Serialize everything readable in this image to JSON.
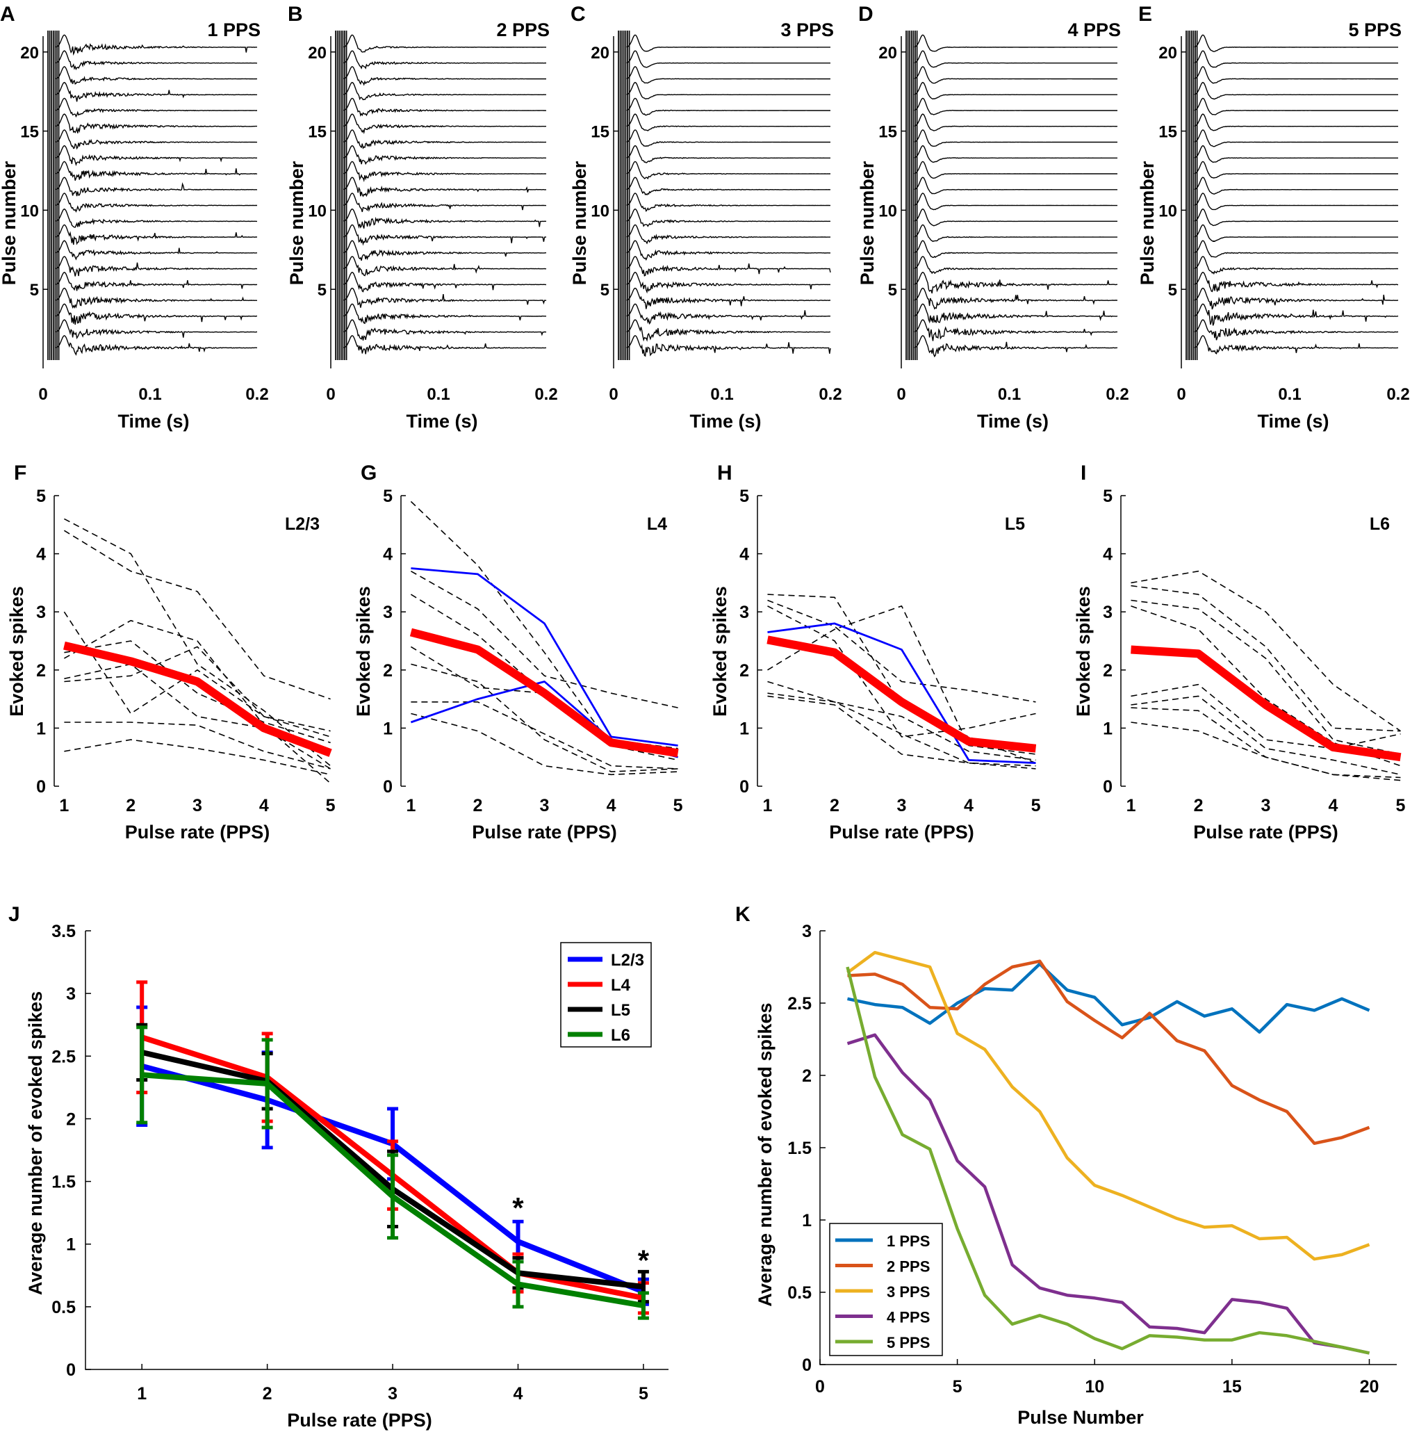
{
  "chart_data": [
    {
      "id": "A",
      "type": "line",
      "subtype": "trace-raster",
      "panel_label": "A",
      "title": "1 PPS",
      "xlabel": "Time (s)",
      "ylabel": "Pulse number",
      "xlim": [
        0,
        0.2
      ],
      "ylim": [
        0,
        21
      ],
      "xticks": [
        0,
        0.1,
        0.2
      ],
      "xtick_labels": [
        "0",
        "0.1",
        "0.2"
      ],
      "yticks": [
        5,
        10,
        15,
        20
      ],
      "ytick_labels": [
        "5",
        "10",
        "15",
        "20"
      ],
      "trace_count": 20,
      "activity_level": [
        0.9,
        0.7,
        0.9,
        0.8,
        0.7,
        0.8,
        0.6,
        0.7,
        0.5,
        0.5,
        0.6,
        0.8,
        0.6,
        0.5,
        0.7,
        0.4,
        0.6,
        0.4,
        0.4,
        0.7
      ]
    },
    {
      "id": "B",
      "type": "line",
      "subtype": "trace-raster",
      "panel_label": "B",
      "title": "2 PPS",
      "xlabel": "Time (s)",
      "ylabel": "Pulse number",
      "xlim": [
        0,
        0.2
      ],
      "ylim": [
        0,
        21
      ],
      "xticks": [
        0,
        0.1,
        0.2
      ],
      "xtick_labels": [
        "0",
        "0.1",
        "0.2"
      ],
      "yticks": [
        5,
        10,
        15,
        20
      ],
      "ytick_labels": [
        "5",
        "10",
        "15",
        "20"
      ],
      "trace_count": 20,
      "activity_level": [
        0.8,
        0.8,
        0.7,
        0.7,
        0.6,
        0.6,
        0.7,
        0.6,
        0.7,
        0.6,
        0.6,
        0.5,
        0.5,
        0.5,
        0.4,
        0.4,
        0.3,
        0.3,
        0.3,
        0.2
      ]
    },
    {
      "id": "C",
      "type": "line",
      "subtype": "trace-raster",
      "panel_label": "C",
      "title": "3 PPS",
      "xlabel": "Time (s)",
      "ylabel": "Pulse number",
      "xlim": [
        0,
        0.2
      ],
      "ylim": [
        0,
        21
      ],
      "xticks": [
        0,
        0.1,
        0.2
      ],
      "xtick_labels": [
        "0",
        "0.1",
        "0.2"
      ],
      "yticks": [
        5,
        10,
        15,
        20
      ],
      "ytick_labels": [
        "5",
        "10",
        "15",
        "20"
      ],
      "trace_count": 20,
      "activity_level": [
        0.9,
        0.9,
        0.8,
        0.8,
        0.7,
        0.6,
        0.5,
        0.4,
        0.3,
        0.3,
        0.2,
        0.2,
        0.15,
        0.1,
        0.1,
        0.1,
        0.05,
        0.05,
        0.05,
        0.05
      ]
    },
    {
      "id": "D",
      "type": "line",
      "subtype": "trace-raster",
      "panel_label": "D",
      "title": "4 PPS",
      "xlabel": "Time (s)",
      "ylabel": "Pulse number",
      "xlim": [
        0,
        0.2
      ],
      "ylim": [
        0,
        21
      ],
      "xticks": [
        0,
        0.1,
        0.2
      ],
      "xtick_labels": [
        "0",
        "0.1",
        "0.2"
      ],
      "yticks": [
        5,
        10,
        15,
        20
      ],
      "ytick_labels": [
        "5",
        "10",
        "15",
        "20"
      ],
      "trace_count": 20,
      "activity_level": [
        0.9,
        1.0,
        0.9,
        0.8,
        0.9,
        0.2,
        0.1,
        0.1,
        0.05,
        0.05,
        0.05,
        0.05,
        0.05,
        0.05,
        0.05,
        0.05,
        0.05,
        0.05,
        0.05,
        0.05
      ]
    },
    {
      "id": "E",
      "type": "line",
      "subtype": "trace-raster",
      "panel_label": "E",
      "title": "5 PPS",
      "xlabel": "Time (s)",
      "ylabel": "Pulse number",
      "xlim": [
        0,
        0.2
      ],
      "ylim": [
        0,
        21
      ],
      "xticks": [
        0,
        0.1,
        0.2
      ],
      "xtick_labels": [
        "0",
        "0.1",
        "0.2"
      ],
      "yticks": [
        5,
        10,
        15,
        20
      ],
      "ytick_labels": [
        "5",
        "10",
        "15",
        "20"
      ],
      "trace_count": 20,
      "activity_level": [
        0.7,
        0.9,
        1.0,
        0.9,
        0.9,
        0.3,
        0.1,
        0.05,
        0.05,
        0.05,
        0.05,
        0.05,
        0.05,
        0.05,
        0.05,
        0.05,
        0.05,
        0.05,
        0.05,
        0.05
      ]
    },
    {
      "id": "F",
      "type": "line",
      "panel_label": "F",
      "title": "L2/3",
      "xlabel": "Pulse rate (PPS)",
      "ylabel": "Evoked spikes",
      "x": [
        1,
        2,
        3,
        4,
        5
      ],
      "xlim": [
        0.85,
        5.15
      ],
      "ylim": [
        0,
        5
      ],
      "xticks": [
        1,
        2,
        3,
        4,
        5
      ],
      "yticks": [
        0,
        1,
        2,
        3,
        4,
        5
      ],
      "dashed_series": [
        [
          4.6,
          4.0,
          2.1,
          1.3,
          0.35
        ],
        [
          4.4,
          3.7,
          3.35,
          1.9,
          1.5
        ],
        [
          3.0,
          1.25,
          2.0,
          1.2,
          0.85
        ],
        [
          2.3,
          2.5,
          1.6,
          1.1,
          0.75
        ],
        [
          2.2,
          2.85,
          2.5,
          1.05,
          0.05
        ],
        [
          1.8,
          1.9,
          2.4,
          1.2,
          0.95
        ],
        [
          1.85,
          2.1,
          1.2,
          1.0,
          0.3
        ],
        [
          1.1,
          1.1,
          1.05,
          0.6,
          0.3
        ],
        [
          0.6,
          0.8,
          0.65,
          0.45,
          0.2
        ]
      ],
      "highlight_series": [],
      "mean": [
        2.42,
        2.15,
        1.8,
        1.0,
        0.57
      ]
    },
    {
      "id": "G",
      "type": "line",
      "panel_label": "G",
      "title": "L4",
      "xlabel": "Pulse rate (PPS)",
      "ylabel": "Evoked spikes",
      "x": [
        1,
        2,
        3,
        4,
        5
      ],
      "xlim": [
        0.85,
        5.15
      ],
      "ylim": [
        0,
        5
      ],
      "xticks": [
        1,
        2,
        3,
        4,
        5
      ],
      "yticks": [
        0,
        1,
        2,
        3,
        4,
        5
      ],
      "dashed_series": [
        [
          4.9,
          3.8,
          2.3,
          0.7,
          0.45
        ],
        [
          3.7,
          3.05,
          1.9,
          1.6,
          1.35
        ],
        [
          3.3,
          2.6,
          1.6,
          0.75,
          0.5
        ],
        [
          2.4,
          1.7,
          1.6,
          0.8,
          0.65
        ],
        [
          2.1,
          1.8,
          0.8,
          0.25,
          0.3
        ],
        [
          1.45,
          1.45,
          0.9,
          0.35,
          0.3
        ],
        [
          1.25,
          0.95,
          0.35,
          0.2,
          0.25
        ]
      ],
      "highlight_series": [
        [
          3.75,
          3.65,
          2.8,
          0.85,
          0.7
        ],
        [
          1.1,
          1.5,
          1.8,
          0.8,
          0.5
        ]
      ],
      "mean": [
        2.65,
        2.35,
        1.6,
        0.75,
        0.57
      ]
    },
    {
      "id": "H",
      "type": "line",
      "panel_label": "H",
      "title": "L5",
      "xlabel": "Pulse rate (PPS)",
      "ylabel": "Evoked spikes",
      "x": [
        1,
        2,
        3,
        4,
        5
      ],
      "xlim": [
        0.85,
        5.15
      ],
      "ylim": [
        0,
        5
      ],
      "xticks": [
        1,
        2,
        3,
        4,
        5
      ],
      "yticks": [
        0,
        1,
        2,
        3,
        4,
        5
      ],
      "dashed_series": [
        [
          3.3,
          3.25,
          1.4,
          0.85,
          0.4
        ],
        [
          3.2,
          2.75,
          1.8,
          1.65,
          1.45
        ],
        [
          3.1,
          2.5,
          0.85,
          1.0,
          1.25
        ],
        [
          2.0,
          2.7,
          3.1,
          0.7,
          0.55
        ],
        [
          1.8,
          1.45,
          1.2,
          0.6,
          0.45
        ],
        [
          1.6,
          1.45,
          0.9,
          0.4,
          0.35
        ],
        [
          1.55,
          1.4,
          0.55,
          0.4,
          0.3
        ]
      ],
      "highlight_series": [
        [
          2.65,
          2.8,
          2.35,
          0.45,
          0.4
        ]
      ],
      "mean": [
        2.52,
        2.3,
        1.45,
        0.77,
        0.65
      ]
    },
    {
      "id": "I",
      "type": "line",
      "panel_label": "I",
      "title": "L6",
      "xlabel": "Pulse rate (PPS)",
      "ylabel": "Evoked spikes",
      "x": [
        1,
        2,
        3,
        4,
        5
      ],
      "xlim": [
        0.85,
        5.15
      ],
      "ylim": [
        0,
        5
      ],
      "xticks": [
        1,
        2,
        3,
        4,
        5
      ],
      "yticks": [
        0,
        1,
        2,
        3,
        4,
        5
      ],
      "dashed_series": [
        [
          3.5,
          3.7,
          3.0,
          1.75,
          0.95
        ],
        [
          3.45,
          3.3,
          2.4,
          1.0,
          0.95
        ],
        [
          3.2,
          3.05,
          2.2,
          0.8,
          0.55
        ],
        [
          3.1,
          2.7,
          1.5,
          0.75,
          0.35
        ],
        [
          1.55,
          1.75,
          0.8,
          0.65,
          0.9
        ],
        [
          1.4,
          1.55,
          0.65,
          0.45,
          0.2
        ],
        [
          1.35,
          1.3,
          0.5,
          0.2,
          0.15
        ],
        [
          1.1,
          0.95,
          0.5,
          0.2,
          0.1
        ]
      ],
      "highlight_series": [],
      "mean": [
        2.35,
        2.28,
        1.4,
        0.67,
        0.5
      ]
    },
    {
      "id": "J",
      "type": "line",
      "panel_label": "J",
      "xlabel": "Pulse rate (PPS)",
      "ylabel": "Average number of evoked spikes",
      "x": [
        1,
        2,
        3,
        4,
        5
      ],
      "xlim": [
        0.55,
        5.2
      ],
      "ylim": [
        0,
        3.5
      ],
      "xticks": [
        1,
        2,
        3,
        4,
        5
      ],
      "yticks": [
        0,
        0.5,
        1,
        1.5,
        2,
        2.5,
        3,
        3.5
      ],
      "ytick_labels": [
        "0",
        "0.5",
        "1",
        "1.5",
        "2",
        "2.5",
        "3",
        "3.5"
      ],
      "legend_position": "top-right",
      "series": [
        {
          "name": "L2/3",
          "color": "#0000ff",
          "values": [
            2.42,
            2.15,
            1.8,
            1.02,
            0.62
          ],
          "err": [
            0.47,
            0.38,
            0.28,
            0.16,
            0.1
          ]
        },
        {
          "name": "L4",
          "color": "#ff0000",
          "values": [
            2.65,
            2.33,
            1.55,
            0.77,
            0.57
          ],
          "err": [
            0.44,
            0.35,
            0.27,
            0.15,
            0.12
          ]
        },
        {
          "name": "L5",
          "color": "#000000",
          "values": [
            2.53,
            2.3,
            1.44,
            0.77,
            0.66
          ],
          "err": [
            0.22,
            0.22,
            0.3,
            0.12,
            0.12
          ]
        },
        {
          "name": "L6",
          "color": "#008000",
          "values": [
            2.35,
            2.28,
            1.38,
            0.68,
            0.51
          ],
          "err": [
            0.38,
            0.35,
            0.33,
            0.18,
            0.1
          ]
        }
      ],
      "annotations": [
        {
          "text": "*",
          "x": 4,
          "y": 1.32
        },
        {
          "text": "*",
          "x": 5,
          "y": 0.9
        }
      ]
    },
    {
      "id": "K",
      "type": "line",
      "panel_label": "K",
      "xlabel": "Pulse Number",
      "ylabel": "Average number of evoked spikes",
      "x": [
        1,
        2,
        3,
        4,
        5,
        6,
        7,
        8,
        9,
        10,
        11,
        12,
        13,
        14,
        15,
        16,
        17,
        18,
        19,
        20
      ],
      "xlim": [
        0,
        21
      ],
      "ylim": [
        0,
        3
      ],
      "xticks": [
        0,
        5,
        10,
        15,
        20
      ],
      "yticks": [
        0,
        0.5,
        1,
        1.5,
        2,
        2.5,
        3
      ],
      "ytick_labels": [
        "0",
        "0.5",
        "1",
        "1.5",
        "2",
        "2.5",
        "3"
      ],
      "legend_position": "bottom-left",
      "series": [
        {
          "name": "1 PPS",
          "color": "#0072bd",
          "values": [
            2.53,
            2.49,
            2.47,
            2.36,
            2.5,
            2.6,
            2.59,
            2.77,
            2.59,
            2.54,
            2.35,
            2.4,
            2.51,
            2.41,
            2.46,
            2.3,
            2.49,
            2.45,
            2.53,
            2.45
          ]
        },
        {
          "name": "2 PPS",
          "color": "#d95319",
          "values": [
            2.69,
            2.7,
            2.63,
            2.47,
            2.46,
            2.63,
            2.75,
            2.79,
            2.51,
            2.38,
            2.26,
            2.43,
            2.24,
            2.17,
            1.93,
            1.83,
            1.75,
            1.53,
            1.57,
            1.64
          ]
        },
        {
          "name": "3 PPS",
          "color": "#edb120",
          "values": [
            2.71,
            2.85,
            2.8,
            2.75,
            2.29,
            2.18,
            1.92,
            1.75,
            1.43,
            1.24,
            1.17,
            1.09,
            1.01,
            0.95,
            0.96,
            0.87,
            0.88,
            0.73,
            0.76,
            0.83
          ]
        },
        {
          "name": "4 PPS",
          "color": "#7e2f8e",
          "values": [
            2.22,
            2.28,
            2.02,
            1.83,
            1.41,
            1.23,
            0.69,
            0.53,
            0.48,
            0.46,
            0.43,
            0.26,
            0.25,
            0.22,
            0.45,
            0.43,
            0.39,
            0.15,
            0.12,
            0.08
          ]
        },
        {
          "name": "5 PPS",
          "color": "#77ac30",
          "values": [
            2.75,
            1.99,
            1.59,
            1.49,
            0.94,
            0.48,
            0.28,
            0.34,
            0.28,
            0.18,
            0.11,
            0.2,
            0.19,
            0.17,
            0.17,
            0.22,
            0.2,
            0.16,
            0.12,
            0.08
          ]
        }
      ]
    }
  ]
}
